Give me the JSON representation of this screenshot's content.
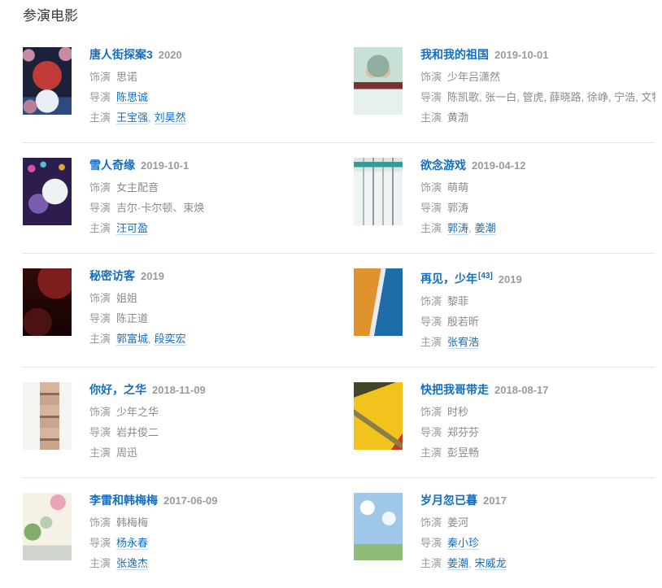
{
  "section": {
    "title": "参演电影"
  },
  "labels": {
    "role": "饰演",
    "director": "导演",
    "star": "主演"
  },
  "list_separator": ",",
  "link_color": "#136ec2",
  "movies": [
    {
      "title": "唐人街探案3",
      "ref": "",
      "date": "2020",
      "role": "思诺",
      "directors": [
        {
          "text": "陈思诚",
          "link": true
        }
      ],
      "stars": [
        {
          "text": "王宝强",
          "link": true
        },
        {
          "text": "刘昊然",
          "link": true
        }
      ]
    },
    {
      "title": "我和我的祖国",
      "ref": "",
      "date": "2019-10-01",
      "role": "少年吕潇然",
      "directors": [
        {
          "text": "陈凯歌, 张一白, 管虎, 薛晓路, 徐峥, 宁浩, 文牧野",
          "link": false
        }
      ],
      "stars": [
        {
          "text": "黄渤",
          "link": false
        }
      ]
    },
    {
      "title": "雪人奇缘",
      "ref": "",
      "date": "2019-10-1",
      "role": "女主配音",
      "directors": [
        {
          "text": "吉尔·卡尔顿、束焕",
          "link": false
        }
      ],
      "stars": [
        {
          "text": "汪可盈",
          "link": true
        }
      ]
    },
    {
      "title": "欲念游戏",
      "ref": "",
      "date": "2019-04-12",
      "role": "萌萌",
      "directors": [
        {
          "text": "郭涛",
          "link": false
        }
      ],
      "stars": [
        {
          "text": "郭涛",
          "link": true
        },
        {
          "text": "姜潮",
          "link": true
        }
      ]
    },
    {
      "title": "秘密访客",
      "ref": "",
      "date": "2019",
      "role": "姐姐",
      "directors": [
        {
          "text": "陈正道",
          "link": false
        }
      ],
      "stars": [
        {
          "text": "郭富城",
          "link": true
        },
        {
          "text": "段奕宏",
          "link": true
        }
      ]
    },
    {
      "title": "再见，少年",
      "ref": "[43]",
      "date": "2019",
      "role": "黎菲",
      "directors": [
        {
          "text": "殷若昕",
          "link": false
        }
      ],
      "stars": [
        {
          "text": "张宥浩",
          "link": true
        }
      ]
    },
    {
      "title": "你好，之华",
      "ref": "",
      "date": "2018-11-09",
      "role": "少年之华",
      "directors": [
        {
          "text": "岩井俊二",
          "link": false
        }
      ],
      "stars": [
        {
          "text": "周迅",
          "link": false
        }
      ]
    },
    {
      "title": "快把我哥带走",
      "ref": "",
      "date": "2018-08-17",
      "role": "时秒",
      "directors": [
        {
          "text": "郑芬芬",
          "link": false
        }
      ],
      "stars": [
        {
          "text": "彭昱畅",
          "link": false
        }
      ]
    },
    {
      "title": "李雷和韩梅梅",
      "ref": "",
      "date": "2017-06-09",
      "role": "韩梅梅",
      "directors": [
        {
          "text": "杨永春",
          "link": true
        }
      ],
      "stars": [
        {
          "text": "张逸杰",
          "link": true
        }
      ]
    },
    {
      "title": "岁月忽已暮",
      "ref": "",
      "date": "2017",
      "role": "姜河",
      "directors": [
        {
          "text": "秦小珍",
          "link": true
        }
      ],
      "stars": [
        {
          "text": "姜潮",
          "link": true
        },
        {
          "text": "宋威龙",
          "link": true
        }
      ]
    }
  ]
}
